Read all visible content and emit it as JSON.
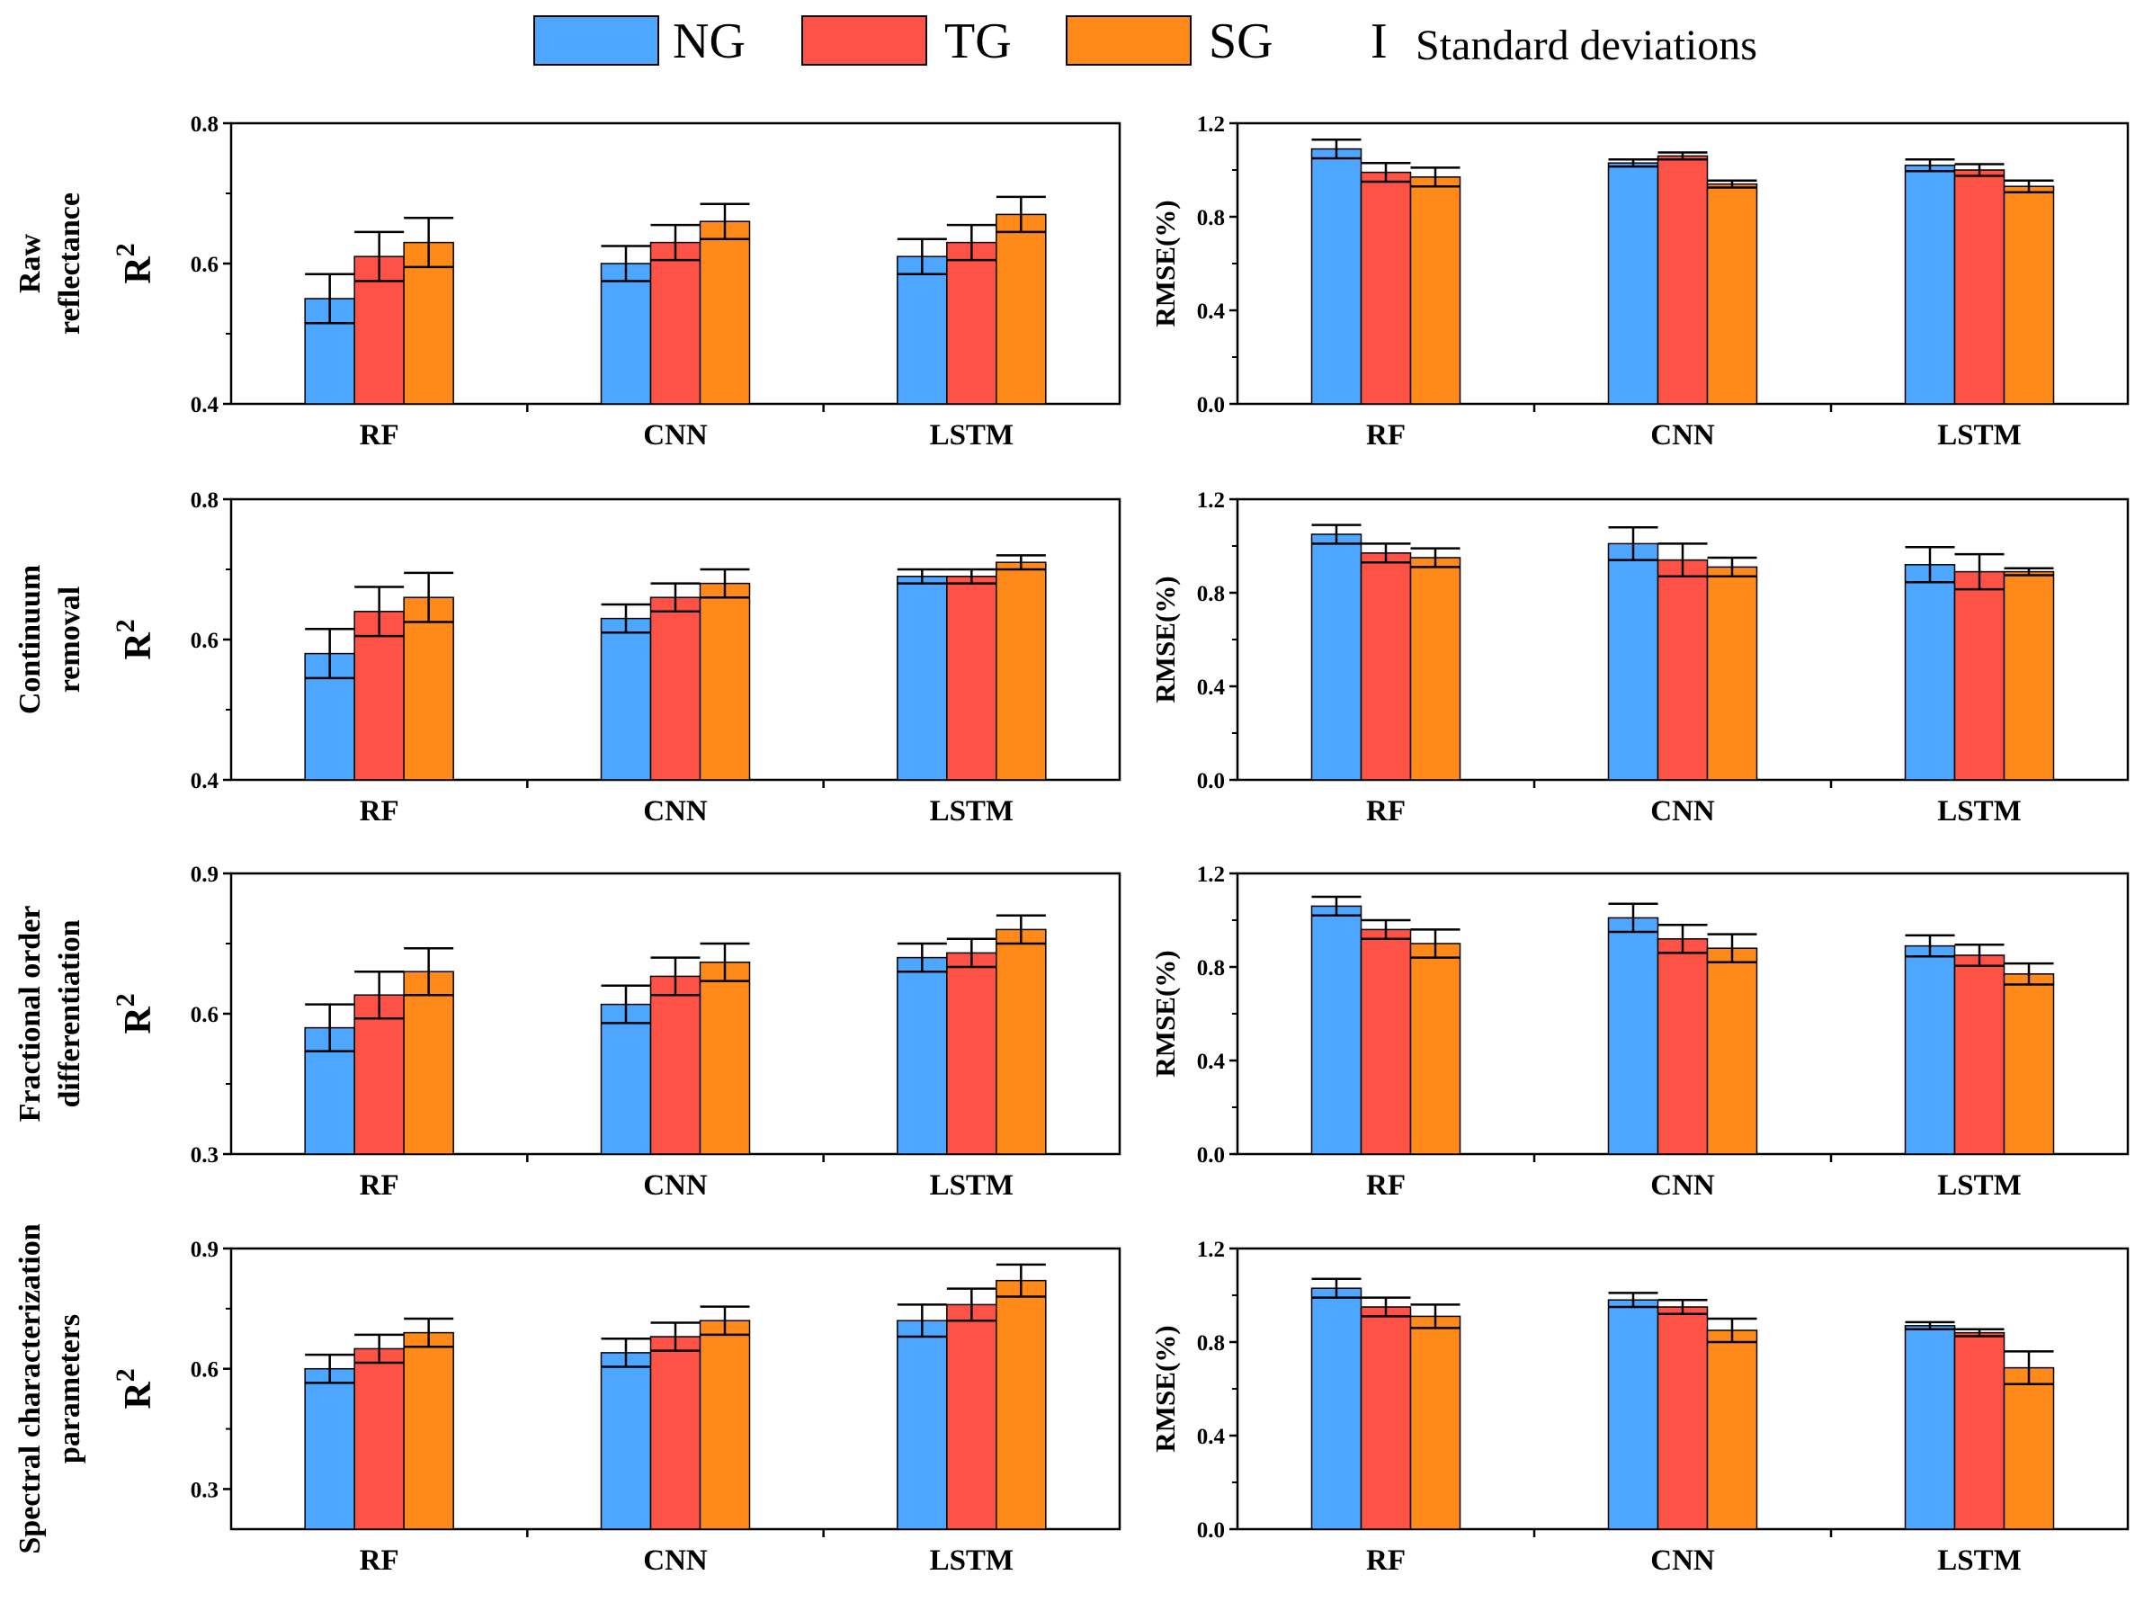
{
  "legend": {
    "entries": [
      {
        "name": "NG",
        "color": "#4da6ff"
      },
      {
        "name": "TG",
        "color": "#ff5246"
      },
      {
        "name": "SG",
        "color": "#ff8a1a"
      }
    ],
    "sd_symbol": "I",
    "sd_label": "Standard deviations",
    "placement": "top-center"
  },
  "rows": [
    {
      "label_lines": [
        "Raw",
        "reflectance"
      ]
    },
    {
      "label_lines": [
        "Continuum",
        "removal"
      ]
    },
    {
      "label_lines": [
        "Fractional order",
        "differentiation"
      ]
    },
    {
      "label_lines": [
        "Spectral characterization",
        "parameters"
      ]
    }
  ],
  "chart_data": [
    {
      "id": "raw-r2",
      "type": "bar",
      "row": 0,
      "col": 0,
      "ylabel_main": "R",
      "ylabel_sup": "2",
      "categories": [
        "RF",
        "CNN",
        "LSTM"
      ],
      "ylim": [
        0.4,
        0.8
      ],
      "yticks": [
        "0.4",
        "0.6",
        "0.8"
      ],
      "minor_ticks": [
        0.5,
        0.7
      ],
      "series": [
        {
          "name": "NG",
          "values": [
            0.55,
            0.6,
            0.61
          ],
          "errors": [
            0.035,
            0.025,
            0.025
          ]
        },
        {
          "name": "TG",
          "values": [
            0.61,
            0.63,
            0.63
          ],
          "errors": [
            0.035,
            0.025,
            0.025
          ]
        },
        {
          "name": "SG",
          "values": [
            0.63,
            0.66,
            0.67
          ],
          "errors": [
            0.035,
            0.025,
            0.025
          ]
        }
      ]
    },
    {
      "id": "raw-rmse",
      "type": "bar",
      "row": 0,
      "col": 1,
      "ylabel_main": "RMSE(%)",
      "ylabel_sup": "",
      "categories": [
        "RF",
        "CNN",
        "LSTM"
      ],
      "ylim": [
        0,
        1.2
      ],
      "yticks": [
        "0.0",
        "0.4",
        "0.8",
        "1.2"
      ],
      "minor_ticks": [
        0.2,
        0.6,
        1.0
      ],
      "series": [
        {
          "name": "NG",
          "values": [
            1.09,
            1.03,
            1.02
          ],
          "errors": [
            0.04,
            0.015,
            0.025
          ]
        },
        {
          "name": "TG",
          "values": [
            0.99,
            1.06,
            1.0
          ],
          "errors": [
            0.04,
            0.015,
            0.025
          ]
        },
        {
          "name": "SG",
          "values": [
            0.97,
            0.94,
            0.93
          ],
          "errors": [
            0.04,
            0.015,
            0.025
          ]
        }
      ]
    },
    {
      "id": "cr-r2",
      "type": "bar",
      "row": 1,
      "col": 0,
      "ylabel_main": "R",
      "ylabel_sup": "2",
      "categories": [
        "RF",
        "CNN",
        "LSTM"
      ],
      "ylim": [
        0.4,
        0.8
      ],
      "yticks": [
        "0.4",
        "0.6",
        "0.8"
      ],
      "minor_ticks": [
        0.5,
        0.7
      ],
      "series": [
        {
          "name": "NG",
          "values": [
            0.58,
            0.63,
            0.69
          ],
          "errors": [
            0.035,
            0.02,
            0.01
          ]
        },
        {
          "name": "TG",
          "values": [
            0.64,
            0.66,
            0.69
          ],
          "errors": [
            0.035,
            0.02,
            0.01
          ]
        },
        {
          "name": "SG",
          "values": [
            0.66,
            0.68,
            0.71
          ],
          "errors": [
            0.035,
            0.02,
            0.01
          ]
        }
      ]
    },
    {
      "id": "cr-rmse",
      "type": "bar",
      "row": 1,
      "col": 1,
      "ylabel_main": "RMSE(%)",
      "ylabel_sup": "",
      "categories": [
        "RF",
        "CNN",
        "LSTM"
      ],
      "ylim": [
        0,
        1.2
      ],
      "yticks": [
        "0.0",
        "0.4",
        "0.8",
        "1.2"
      ],
      "minor_ticks": [
        0.2,
        0.6,
        1.0
      ],
      "series": [
        {
          "name": "NG",
          "values": [
            1.05,
            1.01,
            0.92
          ],
          "errors": [
            0.04,
            0.07,
            0.075
          ]
        },
        {
          "name": "TG",
          "values": [
            0.97,
            0.94,
            0.89
          ],
          "errors": [
            0.04,
            0.07,
            0.075
          ]
        },
        {
          "name": "SG",
          "values": [
            0.95,
            0.91,
            0.89
          ],
          "errors": [
            0.04,
            0.04,
            0.015
          ]
        }
      ]
    },
    {
      "id": "fod-r2",
      "type": "bar",
      "row": 2,
      "col": 0,
      "ylabel_main": "R",
      "ylabel_sup": "2",
      "categories": [
        "RF",
        "CNN",
        "LSTM"
      ],
      "ylim": [
        0.3,
        0.9
      ],
      "yticks": [
        "0.3",
        "0.6",
        "0.9"
      ],
      "minor_ticks": [
        0.45,
        0.75
      ],
      "series": [
        {
          "name": "NG",
          "values": [
            0.57,
            0.62,
            0.72
          ],
          "errors": [
            0.05,
            0.04,
            0.03
          ]
        },
        {
          "name": "TG",
          "values": [
            0.64,
            0.68,
            0.73
          ],
          "errors": [
            0.05,
            0.04,
            0.03
          ]
        },
        {
          "name": "SG",
          "values": [
            0.69,
            0.71,
            0.78
          ],
          "errors": [
            0.05,
            0.04,
            0.03
          ]
        }
      ]
    },
    {
      "id": "fod-rmse",
      "type": "bar",
      "row": 2,
      "col": 1,
      "ylabel_main": "RMSE(%)",
      "ylabel_sup": "",
      "categories": [
        "RF",
        "CNN",
        "LSTM"
      ],
      "ylim": [
        0,
        1.2
      ],
      "yticks": [
        "0.0",
        "0.4",
        "0.8",
        "1.2"
      ],
      "minor_ticks": [
        0.2,
        0.6,
        1.0
      ],
      "series": [
        {
          "name": "NG",
          "values": [
            1.06,
            1.01,
            0.89
          ],
          "errors": [
            0.04,
            0.06,
            0.045
          ]
        },
        {
          "name": "TG",
          "values": [
            0.96,
            0.92,
            0.85
          ],
          "errors": [
            0.04,
            0.06,
            0.045
          ]
        },
        {
          "name": "SG",
          "values": [
            0.9,
            0.88,
            0.77
          ],
          "errors": [
            0.06,
            0.06,
            0.045
          ]
        }
      ]
    },
    {
      "id": "scp-r2",
      "type": "bar",
      "row": 3,
      "col": 0,
      "ylabel_main": "R",
      "ylabel_sup": "2",
      "categories": [
        "RF",
        "CNN",
        "LSTM"
      ],
      "ylim": [
        0.2,
        0.9
      ],
      "yticks": [
        "0.3",
        "0.6",
        "0.9"
      ],
      "minor_ticks": [
        0.45,
        0.75
      ],
      "series": [
        {
          "name": "NG",
          "values": [
            0.6,
            0.64,
            0.72
          ],
          "errors": [
            0.035,
            0.035,
            0.04
          ]
        },
        {
          "name": "TG",
          "values": [
            0.65,
            0.68,
            0.76
          ],
          "errors": [
            0.035,
            0.035,
            0.04
          ]
        },
        {
          "name": "SG",
          "values": [
            0.69,
            0.72,
            0.82
          ],
          "errors": [
            0.035,
            0.035,
            0.04
          ]
        }
      ]
    },
    {
      "id": "scp-rmse",
      "type": "bar",
      "row": 3,
      "col": 1,
      "ylabel_main": "RMSE(%)",
      "ylabel_sup": "",
      "categories": [
        "RF",
        "CNN",
        "LSTM"
      ],
      "ylim": [
        0,
        1.2
      ],
      "yticks": [
        "0.0",
        "0.4",
        "0.8",
        "1.2"
      ],
      "minor_ticks": [
        0.2,
        0.6,
        1.0
      ],
      "series": [
        {
          "name": "NG",
          "values": [
            1.03,
            0.98,
            0.87
          ],
          "errors": [
            0.04,
            0.03,
            0.015
          ]
        },
        {
          "name": "TG",
          "values": [
            0.95,
            0.95,
            0.84
          ],
          "errors": [
            0.04,
            0.03,
            0.015
          ]
        },
        {
          "name": "SG",
          "values": [
            0.91,
            0.85,
            0.69
          ],
          "errors": [
            0.05,
            0.05,
            0.07
          ]
        }
      ]
    }
  ]
}
